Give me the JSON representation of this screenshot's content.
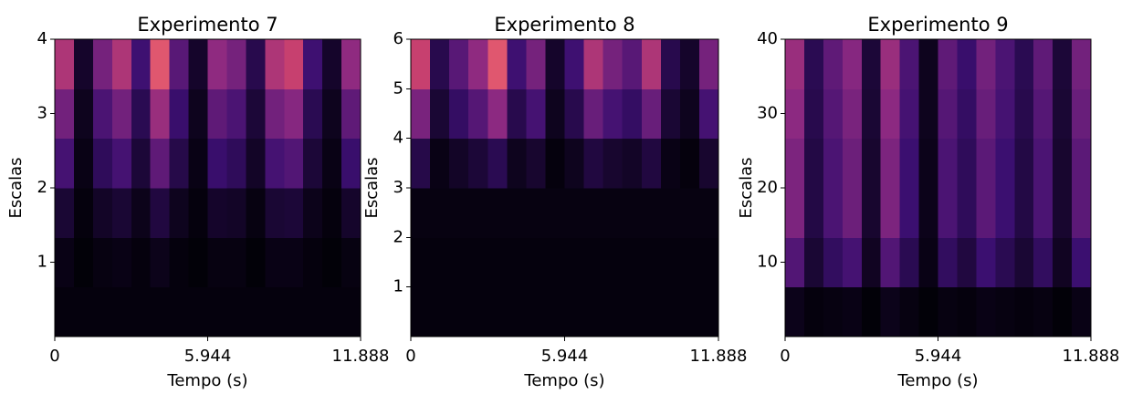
{
  "chart_data": [
    {
      "type": "heatmap",
      "title": "Experimento 7",
      "xlabel": "Tempo (s)",
      "ylabel": "Escalas",
      "colormap": "magma",
      "xlim": [
        0,
        11.888
      ],
      "xticks": [
        0,
        5.944,
        11.888
      ],
      "ylim": [
        0,
        4
      ],
      "yticks": [
        1,
        2,
        3,
        4
      ],
      "z": [
        [
          0.02,
          0.02,
          0.02,
          0.02,
          0.02,
          0.02,
          0.02,
          0.02,
          0.02,
          0.02,
          0.02,
          0.02,
          0.02,
          0.02,
          0.02,
          0.02
        ],
        [
          0.04,
          0.01,
          0.03,
          0.04,
          0.02,
          0.05,
          0.02,
          0.01,
          0.03,
          0.03,
          0.01,
          0.04,
          0.04,
          0.02,
          0.01,
          0.03
        ],
        [
          0.11,
          0.02,
          0.08,
          0.11,
          0.05,
          0.14,
          0.06,
          0.02,
          0.09,
          0.08,
          0.03,
          0.11,
          0.12,
          0.05,
          0.02,
          0.09
        ],
        [
          0.28,
          0.04,
          0.2,
          0.28,
          0.12,
          0.36,
          0.16,
          0.04,
          0.24,
          0.2,
          0.08,
          0.28,
          0.32,
          0.12,
          0.04,
          0.24
        ],
        [
          0.42,
          0.06,
          0.3,
          0.42,
          0.18,
          0.54,
          0.24,
          0.06,
          0.36,
          0.3,
          0.12,
          0.42,
          0.48,
          0.18,
          0.06,
          0.36
        ],
        [
          0.6,
          0.09,
          0.43,
          0.6,
          0.26,
          0.77,
          0.34,
          0.09,
          0.51,
          0.43,
          0.17,
          0.6,
          0.68,
          0.26,
          0.09,
          0.51
        ]
      ]
    },
    {
      "type": "heatmap",
      "title": "Experimento 8",
      "xlabel": "Tempo (s)",
      "ylabel": "Escalas",
      "colormap": "magma",
      "xlim": [
        0,
        11.888
      ],
      "xticks": [
        0,
        5.944,
        11.888
      ],
      "ylim": [
        0,
        6
      ],
      "yticks": [
        1,
        2,
        3,
        4,
        5,
        6
      ],
      "z": [
        [
          0.02,
          0.02,
          0.02,
          0.02,
          0.02,
          0.02,
          0.02,
          0.02,
          0.02,
          0.02,
          0.02,
          0.02,
          0.02,
          0.02,
          0.02,
          0.02
        ],
        [
          0.02,
          0.02,
          0.02,
          0.02,
          0.02,
          0.02,
          0.02,
          0.02,
          0.02,
          0.02,
          0.02,
          0.02,
          0.02,
          0.02,
          0.02,
          0.02
        ],
        [
          0.03,
          0.03,
          0.03,
          0.03,
          0.03,
          0.03,
          0.03,
          0.03,
          0.03,
          0.03,
          0.03,
          0.03,
          0.03,
          0.03,
          0.03,
          0.03
        ],
        [
          0.16,
          0.04,
          0.08,
          0.12,
          0.18,
          0.06,
          0.1,
          0.02,
          0.06,
          0.14,
          0.1,
          0.08,
          0.14,
          0.04,
          0.02,
          0.1
        ],
        [
          0.44,
          0.11,
          0.22,
          0.33,
          0.5,
          0.17,
          0.28,
          0.06,
          0.17,
          0.39,
          0.28,
          0.22,
          0.39,
          0.11,
          0.06,
          0.28
        ],
        [
          0.68,
          0.17,
          0.34,
          0.51,
          0.77,
          0.26,
          0.43,
          0.09,
          0.26,
          0.6,
          0.43,
          0.34,
          0.6,
          0.17,
          0.09,
          0.43
        ]
      ]
    },
    {
      "type": "heatmap",
      "title": "Experimento 9",
      "xlabel": "Tempo (s)",
      "ylabel": "Escalas",
      "colormap": "magma",
      "xlim": [
        0,
        11.888
      ],
      "xticks": [
        0,
        5.944,
        11.888
      ],
      "ylim": [
        0,
        40
      ],
      "yticks": [
        10,
        20,
        30,
        40
      ],
      "z": [
        [
          0.05,
          0.02,
          0.03,
          0.04,
          0.01,
          0.05,
          0.03,
          0.01,
          0.03,
          0.02,
          0.04,
          0.03,
          0.02,
          0.03,
          0.01,
          0.04
        ],
        [
          0.32,
          0.11,
          0.21,
          0.28,
          0.07,
          0.32,
          0.18,
          0.04,
          0.21,
          0.14,
          0.25,
          0.18,
          0.11,
          0.21,
          0.07,
          0.25
        ],
        [
          0.45,
          0.15,
          0.3,
          0.4,
          0.1,
          0.45,
          0.25,
          0.05,
          0.3,
          0.2,
          0.35,
          0.25,
          0.15,
          0.3,
          0.1,
          0.35
        ],
        [
          0.45,
          0.15,
          0.3,
          0.4,
          0.1,
          0.45,
          0.25,
          0.05,
          0.3,
          0.2,
          0.35,
          0.25,
          0.15,
          0.3,
          0.1,
          0.35
        ],
        [
          0.5,
          0.17,
          0.33,
          0.44,
          0.11,
          0.5,
          0.28,
          0.06,
          0.33,
          0.22,
          0.39,
          0.28,
          0.17,
          0.33,
          0.11,
          0.39
        ],
        [
          0.54,
          0.18,
          0.36,
          0.48,
          0.12,
          0.54,
          0.3,
          0.06,
          0.36,
          0.24,
          0.42,
          0.3,
          0.18,
          0.36,
          0.12,
          0.42
        ]
      ]
    }
  ]
}
